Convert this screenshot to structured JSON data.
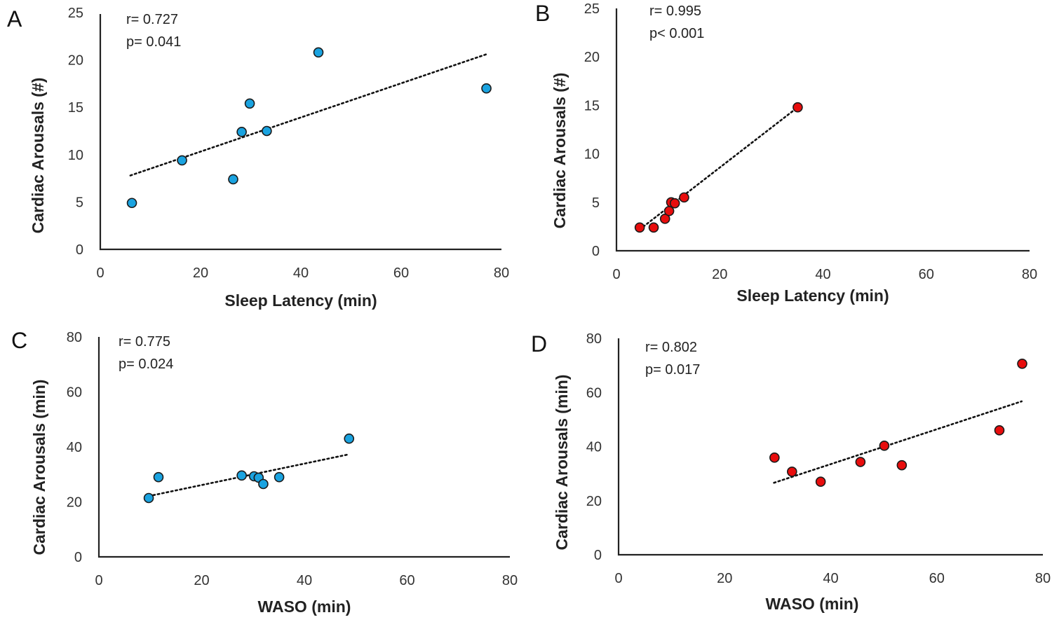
{
  "chart_data": [
    {
      "type": "scatter",
      "panel": "A",
      "title": "",
      "xlabel": "Sleep Latency (min)",
      "ylabel": "Cardiac Arousals (#)",
      "xlim": [
        0,
        80
      ],
      "ylim": [
        0,
        25
      ],
      "xticks": [
        "0",
        "20",
        "40",
        "60",
        "80"
      ],
      "yticks": [
        "0",
        "5",
        "10",
        "15",
        "20",
        "25"
      ],
      "grid": false,
      "color": "#1aa3e0",
      "annotations": [
        "r= 0.727",
        "p= 0.041"
      ],
      "points": [
        {
          "x": 6.3,
          "y": 4.9
        },
        {
          "x": 16.3,
          "y": 9.4
        },
        {
          "x": 26.5,
          "y": 7.4
        },
        {
          "x": 28.2,
          "y": 12.4
        },
        {
          "x": 29.8,
          "y": 15.4
        },
        {
          "x": 33.2,
          "y": 12.5
        },
        {
          "x": 43.5,
          "y": 20.8
        },
        {
          "x": 77.0,
          "y": 17.0
        }
      ],
      "trendline": {
        "style": "dotted",
        "x": [
          6.0,
          77.0
        ],
        "y": [
          7.8,
          20.6
        ]
      }
    },
    {
      "type": "scatter",
      "panel": "B",
      "title": "",
      "xlabel": "Sleep Latency (min)",
      "ylabel": "Cardiac Arousals (#)",
      "xlim": [
        0,
        80
      ],
      "ylim": [
        0,
        25
      ],
      "xticks": [
        "0",
        "20",
        "40",
        "60",
        "80"
      ],
      "yticks": [
        "0",
        "5",
        "10",
        "15",
        "20",
        "25"
      ],
      "grid": false,
      "color": "#e80d0d",
      "annotations": [
        "r= 0.995",
        "p< 0.001"
      ],
      "points": [
        {
          "x": 4.5,
          "y": 2.4
        },
        {
          "x": 7.2,
          "y": 2.4
        },
        {
          "x": 9.4,
          "y": 3.3
        },
        {
          "x": 10.2,
          "y": 4.1
        },
        {
          "x": 10.6,
          "y": 5.0
        },
        {
          "x": 11.3,
          "y": 4.9
        },
        {
          "x": 13.1,
          "y": 5.5
        },
        {
          "x": 35.1,
          "y": 14.8
        }
      ],
      "trendline": {
        "style": "dotted",
        "x": [
          4.5,
          35.1
        ],
        "y": [
          2.2,
          14.8
        ]
      }
    },
    {
      "type": "scatter",
      "panel": "C",
      "title": "",
      "xlabel": "WASO (min)",
      "ylabel": "Cardiac Arousals (min)",
      "xlim": [
        0,
        80
      ],
      "ylim": [
        0,
        80
      ],
      "xticks": [
        "0",
        "20",
        "40",
        "60",
        "80"
      ],
      "yticks": [
        "0",
        "20",
        "40",
        "60",
        "80"
      ],
      "grid": false,
      "color": "#1aa3e0",
      "annotations": [
        "r= 0.775",
        "p= 0.024"
      ],
      "points": [
        {
          "x": 9.7,
          "y": 21.4
        },
        {
          "x": 11.6,
          "y": 29.0
        },
        {
          "x": 27.8,
          "y": 29.6
        },
        {
          "x": 30.2,
          "y": 29.3
        },
        {
          "x": 31.1,
          "y": 28.8
        },
        {
          "x": 32.0,
          "y": 26.5
        },
        {
          "x": 35.1,
          "y": 29.0
        },
        {
          "x": 48.7,
          "y": 43.0
        }
      ],
      "trendline": {
        "style": "dotted",
        "x": [
          9.7,
          48.7
        ],
        "y": [
          22.1,
          37.3
        ]
      }
    },
    {
      "type": "scatter",
      "panel": "D",
      "title": "",
      "xlabel": "WASO (min)",
      "ylabel": "Cardiac Arousals (min)",
      "xlim": [
        0,
        80
      ],
      "ylim": [
        0,
        80
      ],
      "xticks": [
        "0",
        "20",
        "40",
        "60",
        "80"
      ],
      "yticks": [
        "0",
        "20",
        "40",
        "60",
        "80"
      ],
      "grid": false,
      "color": "#e80d0d",
      "annotations": [
        "r= 0.802",
        "p= 0.017"
      ],
      "points": [
        {
          "x": 29.4,
          "y": 35.9
        },
        {
          "x": 32.7,
          "y": 30.7
        },
        {
          "x": 38.1,
          "y": 27.0
        },
        {
          "x": 45.6,
          "y": 34.3
        },
        {
          "x": 50.1,
          "y": 40.3
        },
        {
          "x": 53.4,
          "y": 33.1
        },
        {
          "x": 71.8,
          "y": 46.0
        },
        {
          "x": 76.1,
          "y": 70.6
        }
      ],
      "trendline": {
        "style": "dotted",
        "x": [
          29.3,
          76.0
        ],
        "y": [
          26.6,
          56.7
        ]
      }
    }
  ]
}
